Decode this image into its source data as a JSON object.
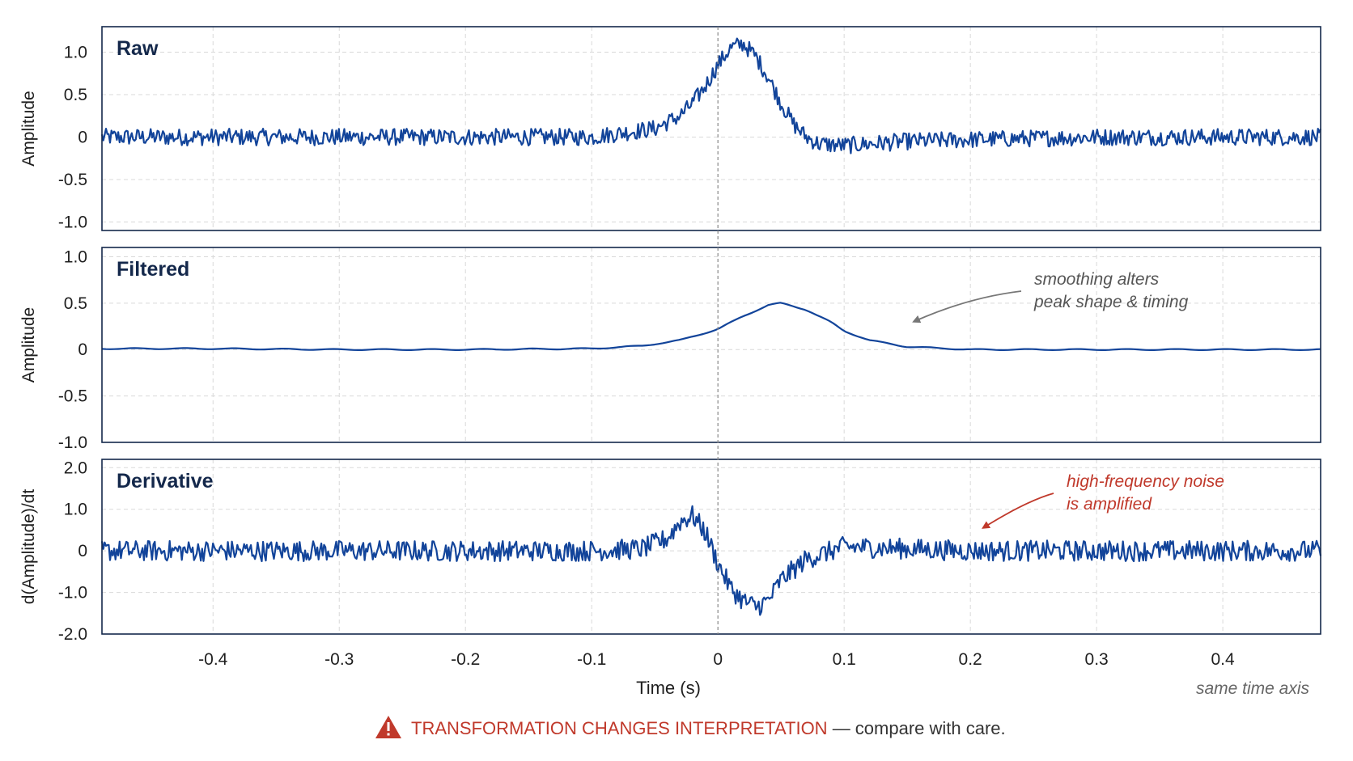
{
  "chart_data": [
    {
      "type": "line",
      "panel_title": "Raw",
      "ylabel": "Amplitude",
      "ylim": [
        -1.1,
        1.3
      ],
      "yticks": [
        1.0,
        0.5,
        0,
        -0.5,
        -1.0
      ],
      "ytick_labels": [
        "1.0",
        "0.5",
        "0",
        "-0.5",
        "-1.0"
      ],
      "x": [
        -0.48,
        -0.4,
        -0.3,
        -0.2,
        -0.1,
        -0.05,
        -0.03,
        -0.02,
        -0.01,
        0,
        0.01,
        0.02,
        0.03,
        0.04,
        0.05,
        0.06,
        0.07,
        0.08,
        0.1,
        0.15,
        0.2,
        0.3,
        0.4,
        0.48
      ],
      "series": [
        {
          "values": [
            0.0,
            0.0,
            0.0,
            0.0,
            0.0,
            0.1,
            0.25,
            0.4,
            0.6,
            0.85,
            1.05,
            1.1,
            0.95,
            0.7,
            0.4,
            0.15,
            0.0,
            -0.08,
            -0.1,
            -0.05,
            -0.03,
            0.0,
            0.0,
            0.0
          ]
        }
      ],
      "noise": "high-frequency, amplitude ~0.1"
    },
    {
      "type": "line",
      "panel_title": "Filtered",
      "ylabel": "Amplitude",
      "ylim": [
        -1.0,
        1.1
      ],
      "yticks": [
        1.0,
        0.5,
        0,
        -0.5,
        -1.0
      ],
      "ytick_labels": [
        "1.0",
        "0.5",
        "0",
        "-0.5",
        "-1.0"
      ],
      "x": [
        -0.48,
        -0.4,
        -0.3,
        -0.2,
        -0.1,
        -0.06,
        -0.03,
        0,
        0.02,
        0.04,
        0.05,
        0.07,
        0.09,
        0.1,
        0.12,
        0.15,
        0.2,
        0.3,
        0.4,
        0.48
      ],
      "series": [
        {
          "values": [
            0.01,
            0.01,
            0.0,
            0.0,
            0.01,
            0.04,
            0.1,
            0.22,
            0.36,
            0.48,
            0.5,
            0.43,
            0.29,
            0.2,
            0.1,
            0.03,
            0.0,
            0.0,
            0.0,
            0.0
          ]
        }
      ],
      "annotation": {
        "lines": [
          "smoothing alters",
          "peak shape & timing"
        ],
        "points_to": {
          "x": 0.155,
          "y": 0.3
        }
      }
    },
    {
      "type": "line",
      "panel_title": "Derivative",
      "ylabel": "d(Amplitude)/dt",
      "ylim": [
        -2.0,
        2.2
      ],
      "yticks": [
        2.0,
        1.0,
        0,
        -1.0,
        -2.0
      ],
      "ytick_labels": [
        "2.0",
        "1.0",
        "0",
        "-1.0",
        "-2.0"
      ],
      "x": [
        -0.48,
        -0.1,
        -0.06,
        -0.04,
        -0.03,
        -0.02,
        -0.01,
        0,
        0.01,
        0.02,
        0.03,
        0.04,
        0.05,
        0.07,
        0.1,
        0.2,
        0.3,
        0.4,
        0.48
      ],
      "series": [
        {
          "values": [
            0.0,
            0.0,
            0.05,
            0.3,
            0.7,
            0.85,
            0.45,
            -0.3,
            -0.9,
            -1.2,
            -1.35,
            -1.2,
            -0.7,
            -0.2,
            0.1,
            0.0,
            0.0,
            0.0,
            0.0
          ]
        }
      ],
      "noise": "high-frequency, amplitude ~0.25",
      "annotation": {
        "lines": [
          "high-frequency noise",
          "is amplified"
        ],
        "points_to": {
          "x": 0.21,
          "y": 0.55
        }
      }
    }
  ],
  "shared_x_axis": {
    "xlabel": "Time (s)",
    "xlim": [
      -0.488,
      0.4775
    ],
    "xticks": [
      -0.4,
      -0.3,
      -0.2,
      -0.1,
      0,
      0.1,
      0.2,
      0.3,
      0.4
    ],
    "xtick_labels": [
      "-0.4",
      "-0.3",
      "-0.2",
      "-0.1",
      "0",
      "0.1",
      "0.2",
      "0.3",
      "0.4"
    ],
    "note": "same time axis"
  },
  "footer": {
    "warning_icon": "warning-triangle-icon",
    "warning_text": "TRANSFORMATION CHANGES INTERPRETATION",
    "rest_text": " — compare with care."
  },
  "colors": {
    "series": "#12449a",
    "panel_title": "#14284b",
    "warning": "#c0392b",
    "annotation_gray": "#555555"
  }
}
